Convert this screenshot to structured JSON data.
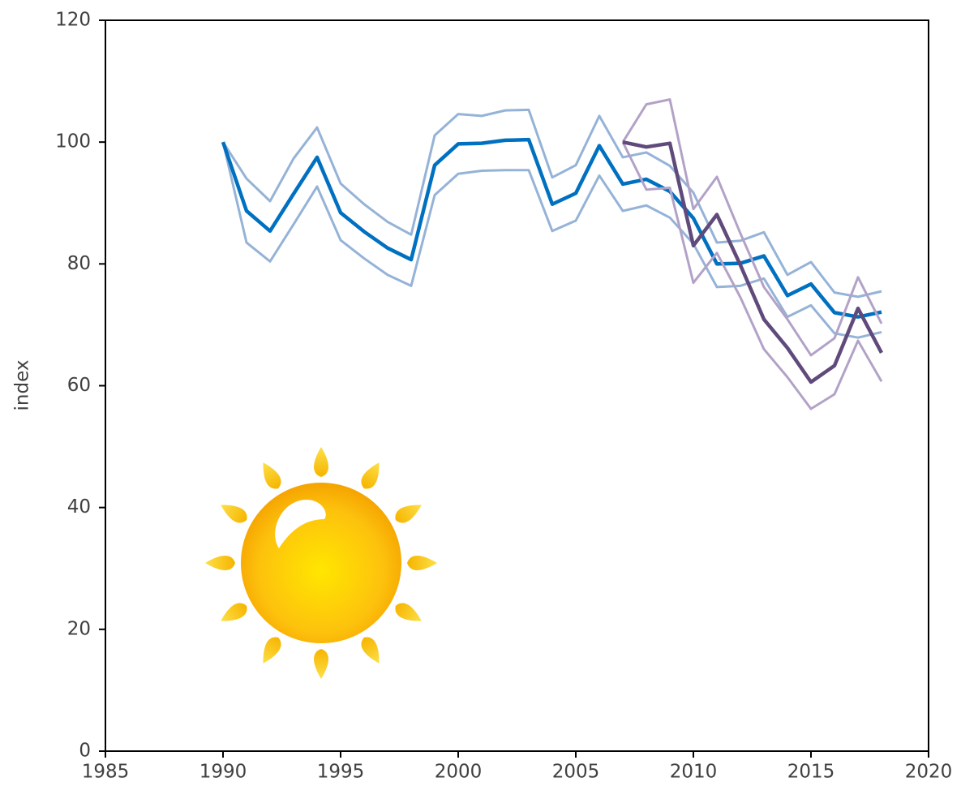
{
  "chart_data": {
    "type": "line",
    "y_label": "index",
    "x": [
      1990,
      1991,
      1992,
      1993,
      1994,
      1995,
      1996,
      1997,
      1998,
      1999,
      2000,
      2001,
      2002,
      2003,
      2004,
      2005,
      2006,
      2007,
      2008,
      2009,
      2010,
      2011,
      2012,
      2013,
      2014,
      2015,
      2016,
      2017,
      2018
    ],
    "series": [
      {
        "color": "#95b3d7",
        "width": 3,
        "values": [
          100,
          94,
          90.3,
          97.3,
          102.4,
          93.2,
          89.8,
          86.9,
          84.8,
          101.1,
          104.6,
          104.3,
          105.2,
          105.3,
          94.2,
          96.2,
          104.3,
          97.5,
          98.3,
          96.1,
          91.7,
          83.5,
          83.8,
          85.2,
          78.2,
          80.3,
          75.3,
          74.6,
          75.5
        ]
      },
      {
        "color": "#95b3d7",
        "width": 3,
        "values": [
          100,
          83.5,
          80.4,
          86.5,
          92.7,
          83.9,
          80.9,
          78.2,
          76.4,
          91.3,
          94.8,
          95.3,
          95.4,
          95.4,
          85.4,
          87.1,
          94.5,
          88.7,
          89.6,
          87.6,
          83.3,
          76.2,
          76.4,
          77.6,
          71.3,
          73.2,
          68.6,
          67.9,
          68.8
        ]
      },
      {
        "color": "#0070c0",
        "width": 4.5,
        "values": [
          100,
          88.7,
          85.4,
          91.5,
          97.5,
          88.4,
          85.3,
          82.6,
          80.7,
          96.2,
          99.7,
          99.8,
          100.3,
          100.4,
          89.8,
          91.6,
          99.4,
          93.1,
          93.9,
          91.9,
          87.5,
          80,
          80.1,
          81.3,
          74.8,
          76.7,
          72,
          71.3,
          72.1
        ]
      },
      {
        "color": "#b3a2c7",
        "width": 3,
        "values": [
          null,
          null,
          null,
          null,
          null,
          null,
          null,
          null,
          null,
          null,
          null,
          null,
          null,
          null,
          null,
          null,
          null,
          100,
          106.2,
          107,
          89,
          94.3,
          85,
          76.2,
          70.9,
          65,
          67.8,
          77.8,
          70.2
        ]
      },
      {
        "color": "#b3a2c7",
        "width": 3,
        "values": [
          null,
          null,
          null,
          null,
          null,
          null,
          null,
          null,
          null,
          null,
          null,
          null,
          null,
          null,
          null,
          null,
          null,
          100,
          92.2,
          92.5,
          76.9,
          81.8,
          74.5,
          66,
          61.4,
          56.2,
          58.6,
          67.4,
          60.7
        ]
      },
      {
        "color": "#604a7b",
        "width": 4.5,
        "values": [
          null,
          null,
          null,
          null,
          null,
          null,
          null,
          null,
          null,
          null,
          null,
          null,
          null,
          null,
          null,
          null,
          null,
          100,
          99.2,
          99.8,
          83,
          88.1,
          79.8,
          70.9,
          66.2,
          60.6,
          63.3,
          72.7,
          65.4
        ]
      }
    ],
    "xlim": [
      1985,
      2020
    ],
    "xticks": [
      1985,
      1990,
      1995,
      2000,
      2005,
      2010,
      2015,
      2020
    ],
    "ylim": [
      0,
      120
    ],
    "yticks": [
      0,
      20,
      40,
      60,
      80,
      100,
      120
    ]
  }
}
